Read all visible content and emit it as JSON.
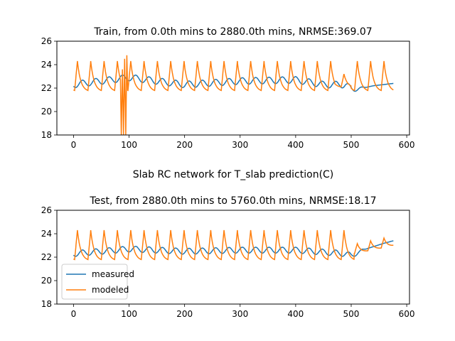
{
  "figure": {
    "suptitle": "Slab RC network for T_slab prediction(C)"
  },
  "colors": {
    "measured": "#1f77b4",
    "modeled": "#ff7f0e"
  },
  "chart_data": [
    {
      "type": "line",
      "title": "Train, from 0.0th mins to 2880.0th mins, NRMSE:369.07",
      "xlim": [
        -30,
        605
      ],
      "ylim": [
        18,
        26
      ],
      "xticks": [
        0,
        100,
        200,
        300,
        400,
        500,
        600
      ],
      "yticks": [
        18,
        20,
        22,
        24,
        26
      ],
      "grid": false,
      "measured": {
        "base": 22.5,
        "amp": 0.28,
        "period": 24,
        "phase": 10,
        "points": [
          [
            0,
            22.3
          ],
          [
            100,
            22.9
          ],
          [
            200,
            22.3
          ],
          [
            300,
            22.6
          ],
          [
            400,
            22.7
          ],
          [
            450,
            22.3
          ],
          [
            490,
            22.3
          ],
          [
            500,
            21.9
          ],
          [
            520,
            22.0
          ],
          [
            540,
            22.2
          ],
          [
            576,
            22.4
          ]
        ]
      },
      "modeled": {
        "low": 21.8,
        "high": 24.3,
        "period": 24,
        "start": 2,
        "spikes": [
          {
            "x": 86,
            "y": 18
          },
          {
            "x": 88,
            "y": 23.6
          },
          {
            "x": 90,
            "y": 18
          },
          {
            "x": 92,
            "y": 24.5
          },
          {
            "x": 94,
            "y": 18
          },
          {
            "x": 96,
            "y": 24.8
          }
        ],
        "points": [
          [
            0,
            22.0
          ],
          [
            7,
            24.3
          ],
          [
            20,
            21.8
          ],
          [
            160,
            21.6
          ],
          [
            480,
            22.3
          ],
          [
            510,
            24.0
          ],
          [
            576,
            22.2
          ]
        ]
      }
    },
    {
      "type": "line",
      "title": "Test, from 2880.0th mins to 5760.0th mins, NRMSE:18.17",
      "xlim": [
        -30,
        605
      ],
      "ylim": [
        18,
        26
      ],
      "xticks": [
        0,
        100,
        200,
        300,
        400,
        500,
        600
      ],
      "yticks": [
        18,
        20,
        22,
        24,
        26
      ],
      "grid": false,
      "legend_position": "lower-left",
      "measured": {
        "base": 22.5,
        "amp": 0.25,
        "period": 24,
        "phase": 10,
        "points": [
          [
            0,
            22.3
          ],
          [
            100,
            22.7
          ],
          [
            200,
            22.5
          ],
          [
            300,
            22.6
          ],
          [
            400,
            22.6
          ],
          [
            490,
            22.3
          ],
          [
            500,
            22.1
          ],
          [
            520,
            22.6
          ],
          [
            540,
            22.9
          ],
          [
            560,
            23.2
          ],
          [
            576,
            23.4
          ]
        ]
      },
      "modeled": {
        "low": 21.8,
        "high": 24.3,
        "period": 24,
        "start": 2,
        "points": [
          [
            0,
            22.0
          ],
          [
            7,
            24.3
          ],
          [
            20,
            21.8
          ],
          [
            480,
            21.8
          ],
          [
            496,
            24.4
          ],
          [
            576,
            23.3
          ]
        ]
      },
      "legend": {
        "measured": "measured",
        "modeled": "modeled"
      }
    }
  ]
}
